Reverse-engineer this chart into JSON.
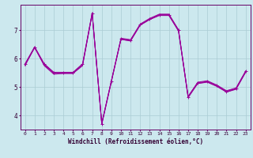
{
  "xlabel": "Windchill (Refroidissement éolien,°C)",
  "bg_color": "#cce8ee",
  "line_color": "#990099",
  "grid_color": "#aaccd4",
  "series1": {
    "x": [
      0,
      1,
      2,
      3,
      4,
      5,
      6,
      7,
      8,
      9,
      10,
      11,
      12,
      13,
      14,
      15,
      16,
      17,
      18,
      19,
      20,
      21,
      22,
      23
    ],
    "y": [
      5.8,
      6.4,
      5.8,
      5.5,
      5.5,
      5.5,
      5.8,
      7.6,
      3.7,
      5.2,
      6.7,
      6.65,
      7.2,
      7.4,
      7.55,
      7.55,
      7.0,
      4.65,
      5.15,
      5.2,
      5.05,
      4.85,
      4.95,
      5.55
    ]
  },
  "series2": {
    "x": [
      0,
      1,
      2,
      3,
      4,
      5,
      6,
      7,
      8,
      9,
      10,
      11,
      12,
      13,
      14,
      15,
      16,
      17,
      18,
      19,
      20,
      21,
      22,
      23
    ],
    "y": [
      5.75,
      6.4,
      5.75,
      5.45,
      5.48,
      5.48,
      5.75,
      7.58,
      3.68,
      5.18,
      6.68,
      6.62,
      7.18,
      7.38,
      7.52,
      7.52,
      6.97,
      4.62,
      5.12,
      5.17,
      5.02,
      4.82,
      4.92,
      5.52
    ]
  },
  "series3": {
    "x": [
      0,
      1,
      2,
      3,
      4,
      5,
      6,
      7,
      8,
      9,
      10,
      11,
      12,
      13,
      14,
      15,
      16,
      17,
      18,
      19,
      20,
      21,
      22,
      23
    ],
    "y": [
      5.78,
      6.38,
      5.78,
      5.48,
      5.48,
      5.48,
      5.78,
      7.58,
      3.72,
      5.22,
      6.68,
      6.63,
      7.18,
      7.38,
      7.53,
      7.53,
      6.98,
      4.67,
      5.13,
      5.18,
      5.03,
      4.83,
      4.93,
      5.53
    ]
  },
  "series4": {
    "x": [
      0,
      1,
      2,
      3,
      4,
      5,
      6,
      7,
      8,
      9,
      10,
      11,
      12,
      13,
      14,
      15,
      16,
      17,
      18,
      19,
      20,
      21,
      22,
      23
    ],
    "y": [
      5.82,
      6.42,
      5.82,
      5.52,
      5.52,
      5.52,
      5.82,
      7.62,
      3.72,
      5.22,
      6.72,
      6.67,
      7.22,
      7.42,
      7.57,
      7.57,
      7.02,
      4.67,
      5.17,
      5.22,
      5.07,
      4.87,
      4.97,
      5.57
    ]
  },
  "ylim": [
    3.5,
    7.9
  ],
  "yticks": [
    4,
    5,
    6,
    7
  ],
  "xticks": [
    0,
    1,
    2,
    3,
    4,
    5,
    6,
    7,
    8,
    9,
    10,
    11,
    12,
    13,
    14,
    15,
    16,
    17,
    18,
    19,
    20,
    21,
    22,
    23
  ]
}
